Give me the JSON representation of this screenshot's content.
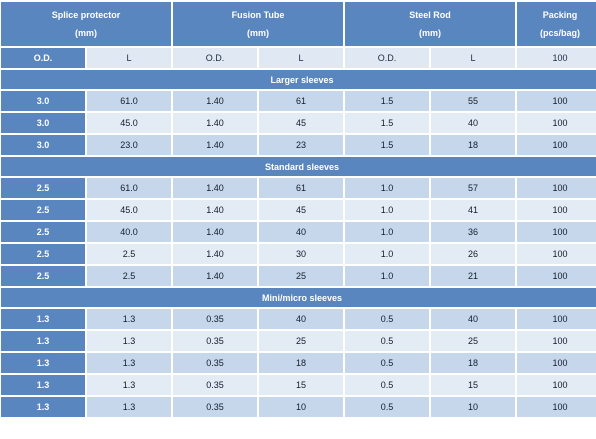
{
  "header": {
    "groups": [
      {
        "title": "Splice protector",
        "unit": "(mm)"
      },
      {
        "title": "Fusion Tube",
        "unit": "(mm)"
      },
      {
        "title": "Steel Rod",
        "unit": "(mm)"
      },
      {
        "title": "Packing",
        "unit": "(pcs/bag)"
      }
    ],
    "subheaders": [
      "O.D.",
      "L",
      "O.D.",
      "L",
      "O.D.",
      "L",
      "100"
    ]
  },
  "sections": [
    {
      "title": "Larger sleeves",
      "rows": [
        {
          "od": "3.0",
          "cells": [
            "61.0",
            "1.40",
            "61",
            "1.5",
            "55",
            "100"
          ]
        },
        {
          "od": "3.0",
          "cells": [
            "45.0",
            "1.40",
            "45",
            "1.5",
            "40",
            "100"
          ]
        },
        {
          "od": "3.0",
          "cells": [
            "23.0",
            "1.40",
            "23",
            "1.5",
            "18",
            "100"
          ]
        }
      ]
    },
    {
      "title": "Standard sleeves",
      "rows": [
        {
          "od": "2.5",
          "cells": [
            "61.0",
            "1.40",
            "61",
            "1.0",
            "57",
            "100"
          ]
        },
        {
          "od": "2.5",
          "cells": [
            "45.0",
            "1.40",
            "45",
            "1.0",
            "41",
            "100"
          ]
        },
        {
          "od": "2.5",
          "cells": [
            "40.0",
            "1.40",
            "40",
            "1.0",
            "36",
            "100"
          ]
        },
        {
          "od": "2.5",
          "cells": [
            "2.5",
            "1.40",
            "30",
            "1.0",
            "26",
            "100"
          ]
        },
        {
          "od": "2.5",
          "cells": [
            "2.5",
            "1.40",
            "25",
            "1.0",
            "21",
            "100"
          ]
        }
      ]
    },
    {
      "title": "Mini/micro sleeves",
      "rows": [
        {
          "od": "1.3",
          "cells": [
            "1.3",
            "0.35",
            "40",
            "0.5",
            "40",
            "100"
          ]
        },
        {
          "od": "1.3",
          "cells": [
            "1.3",
            "0.35",
            "25",
            "0.5",
            "25",
            "100"
          ]
        },
        {
          "od": "1.3",
          "cells": [
            "1.3",
            "0.35",
            "18",
            "0.5",
            "18",
            "100"
          ]
        },
        {
          "od": "1.3",
          "cells": [
            "1.3",
            "0.35",
            "15",
            "0.5",
            "15",
            "100"
          ]
        },
        {
          "od": "1.3",
          "cells": [
            "1.3",
            "0.35",
            "10",
            "0.5",
            "10",
            "100"
          ]
        }
      ]
    }
  ],
  "colors": {
    "header_blue": "#5a86c0",
    "row_dark": "#c7d7eb",
    "row_light": "#e3ebf5"
  }
}
